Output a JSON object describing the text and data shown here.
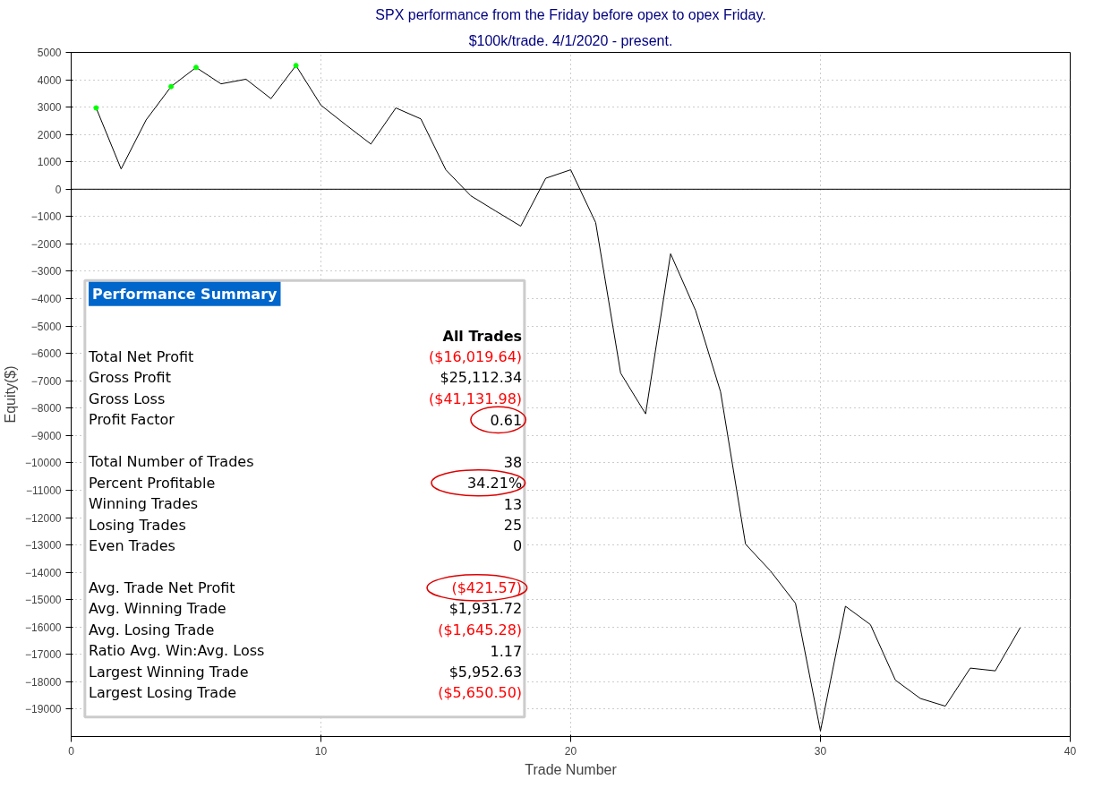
{
  "chart_data": {
    "type": "line",
    "title": "SPX performance from the Friday before opex to opex Friday.",
    "subtitle": "$100k/trade. 4/1/2020 - present.",
    "xlabel": "Trade Number",
    "ylabel": "Equity($)",
    "xlim": [
      0,
      40
    ],
    "xticks": [
      0,
      10,
      20,
      30,
      40
    ],
    "ylim": [
      -20000,
      5000
    ],
    "yticks": [
      -19000,
      -18000,
      -17000,
      -16000,
      -15000,
      -14000,
      -13000,
      -12000,
      -11000,
      -10000,
      -9000,
      -8000,
      -7000,
      -6000,
      -5000,
      -4000,
      -3000,
      -2000,
      -1000,
      0,
      1000,
      2000,
      3000,
      4000,
      5000
    ],
    "grid": true,
    "ref_lines": [
      {
        "axis": "y",
        "value": 0,
        "color": "#000000"
      }
    ],
    "series": [
      {
        "color": "#000000",
        "marker": "none",
        "x": [
          1,
          2,
          3,
          4,
          5,
          6,
          7,
          8,
          9,
          10,
          11,
          12,
          13,
          14,
          15,
          16,
          17,
          18,
          19,
          20,
          21,
          22,
          23,
          24,
          25,
          26,
          27,
          28,
          29,
          30,
          31,
          32,
          33,
          34,
          35,
          36,
          37,
          38
        ],
        "values": [
          2970,
          740,
          2530,
          3750,
          4450,
          3850,
          4020,
          3310,
          4520,
          3070,
          2350,
          1650,
          2970,
          2570,
          710,
          -240,
          -800,
          -1350,
          400,
          710,
          -1220,
          -6720,
          -8210,
          -2360,
          -4430,
          -7400,
          -12970,
          -13950,
          -15130,
          -19800,
          -15240,
          -15910,
          -17940,
          -18610,
          -18890,
          -17500,
          -17600,
          -16020
        ]
      },
      {
        "type": "scatter",
        "color": "#00ff00",
        "marker": "circle",
        "x": [
          1,
          4,
          5,
          9
        ],
        "values": [
          2970,
          3750,
          4450,
          4520
        ]
      }
    ],
    "annotations": [
      "Performance Summary",
      "All Trades",
      "Total Net Profit",
      "($16,019.64)",
      "Gross Profit",
      "$25,112.34",
      "Gross Loss",
      "($41,131.98)",
      "Profit Factor",
      "0.61",
      "Total Number of Trades",
      "38",
      "Percent Profitable",
      "34.21%",
      "Winning Trades",
      "13",
      "Losing Trades",
      "25",
      "Even Trades",
      "0",
      "Avg. Trade Net Profit",
      "($421.57)",
      "Avg. Winning Trade",
      "$1,931.72",
      "Avg. Losing Trade",
      "($1,645.28)",
      "Ratio Avg. Win:Avg. Loss",
      "1.17",
      "Largest Winning Trade",
      "$5,952.63",
      "Largest Losing Trade",
      "($5,650.50)"
    ]
  }
}
